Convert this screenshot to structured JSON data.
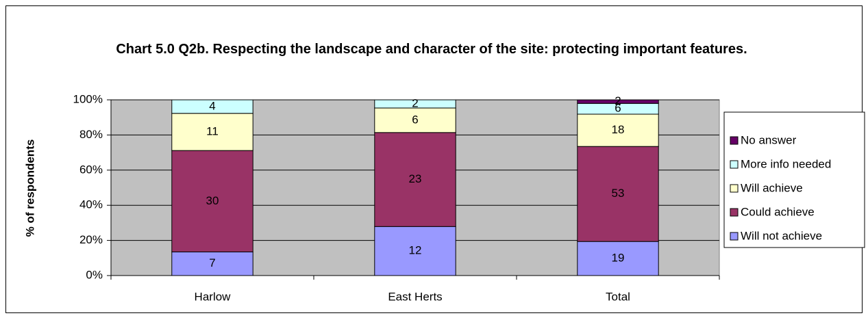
{
  "chart_data": {
    "type": "bar",
    "stacking": "percent",
    "title": "Chart 5.0 Q2b. Respecting the landscape and character of the site: protecting important features.",
    "y_label": "% of respondents",
    "categories": [
      "Harlow",
      "East Herts",
      "Total"
    ],
    "series": [
      {
        "name": "Will not achieve",
        "color": "#9999ff",
        "values": [
          7,
          12,
          19
        ]
      },
      {
        "name": "Could achieve",
        "color": "#993366",
        "values": [
          30,
          23,
          53
        ]
      },
      {
        "name": "Will achieve",
        "color": "#ffffcc",
        "values": [
          11,
          6,
          18
        ]
      },
      {
        "name": "More info needed",
        "color": "#ccffff",
        "values": [
          4,
          2,
          6
        ]
      },
      {
        "name": "No answer",
        "color": "#660066",
        "values": [
          0,
          0,
          2
        ]
      }
    ],
    "ylim": [
      0,
      100
    ],
    "yticks": [
      {
        "value": 0,
        "label": "0%"
      },
      {
        "value": 20,
        "label": "20%"
      },
      {
        "value": 40,
        "label": "40%"
      },
      {
        "value": 60,
        "label": "60%"
      },
      {
        "value": 80,
        "label": "80%"
      },
      {
        "value": 100,
        "label": "100%"
      }
    ],
    "plot_background": "#c0c0c0",
    "legend": "right"
  }
}
